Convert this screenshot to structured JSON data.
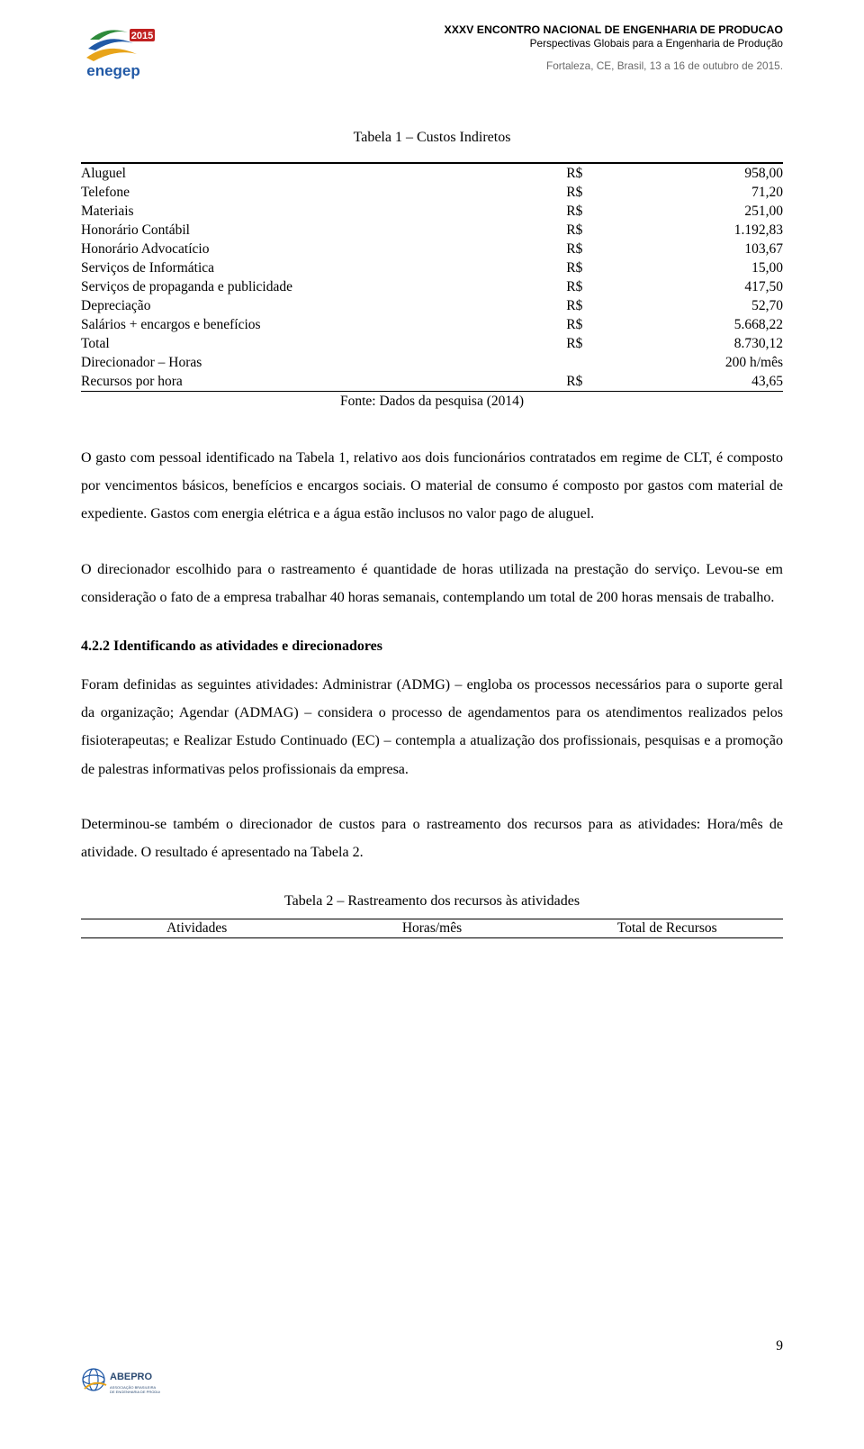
{
  "header": {
    "line1": "XXXV ENCONTRO NACIONAL DE ENGENHARIA DE PRODUCAO",
    "line2": "Perspectivas Globais para a Engenharia de Produção",
    "line3": "Fortaleza, CE, Brasil, 13 a 16 de outubro de 2015."
  },
  "logo_enegep": {
    "colors": {
      "swirl_top": "#2e8b3b",
      "swirl_mid": "#2159a6",
      "swirl_bot": "#e8a41a",
      "year_bg": "#c02020",
      "text": "#2159a6"
    },
    "year": "2015",
    "caption": "enegep"
  },
  "table1": {
    "caption": "Tabela 1 – Custos Indiretos",
    "rows": [
      {
        "label": "Aluguel",
        "cur": "R$",
        "val": "958,00"
      },
      {
        "label": "Telefone",
        "cur": "R$",
        "val": "71,20"
      },
      {
        "label": "Materiais",
        "cur": "R$",
        "val": "251,00"
      },
      {
        "label": "Honorário Contábil",
        "cur": "R$",
        "val": "1.192,83"
      },
      {
        "label": "Honorário Advocatício",
        "cur": "R$",
        "val": "103,67"
      },
      {
        "label": "Serviços de Informática",
        "cur": "R$",
        "val": "15,00"
      },
      {
        "label": "Serviços de propaganda e publicidade",
        "cur": "R$",
        "val": "417,50"
      },
      {
        "label": "Depreciação",
        "cur": "R$",
        "val": "52,70"
      },
      {
        "label": "Salários + encargos e benefícios",
        "cur": "R$",
        "val": "5.668,22"
      },
      {
        "label": "Total",
        "cur": "R$",
        "val": "8.730,12"
      },
      {
        "label": "Direcionador – Horas",
        "cur": "",
        "val": "200 h/mês"
      },
      {
        "label": "Recursos por hora",
        "cur": "R$",
        "val": "43,65"
      }
    ],
    "source": "Fonte: Dados da pesquisa (2014)"
  },
  "paragraphs": {
    "p1": "O gasto com pessoal identificado na Tabela 1, relativo aos dois funcionários contratados em regime de CLT, é composto por vencimentos básicos, benefícios e encargos sociais. O material de consumo é composto por gastos com material de expediente. Gastos com energia elétrica e a água estão inclusos no valor pago de aluguel.",
    "p2": "O direcionador escolhido para o rastreamento é quantidade de horas utilizada na prestação do serviço. Levou-se em consideração o fato de a empresa trabalhar 40 horas semanais, contemplando um total de 200 horas mensais de trabalho.",
    "p3": "Foram definidas as seguintes atividades: Administrar (ADMG) – engloba os processos necessários para o suporte geral da organização; Agendar (ADMAG) – considera o processo de agendamentos para os atendimentos realizados pelos fisioterapeutas; e Realizar Estudo Continuado (EC) – contempla a atualização dos profissionais, pesquisas e a promoção de palestras informativas pelos profissionais da empresa.",
    "p4": "Determinou-se também o direcionador de custos para o rastreamento dos recursos para as atividades: Hora/mês de atividade. O resultado é apresentado na Tabela 2."
  },
  "subsection": "4.2.2 Identificando as atividades e direcionadores",
  "table2": {
    "caption": "Tabela 2 – Rastreamento dos recursos às atividades",
    "headers": {
      "c1": "Atividades",
      "c2": "Horas/mês",
      "c3": "Total de Recursos"
    }
  },
  "page_number": "9",
  "footer_logo": {
    "colors": {
      "globe": "#2159a6",
      "accent": "#e8a41a",
      "text": "#2b4a72"
    },
    "caption_top": "ABEPRO",
    "caption_bot": "ASSOCIAÇÃO BRASILEIRA DE ENGENHARIA DE PRODUÇÃO"
  }
}
